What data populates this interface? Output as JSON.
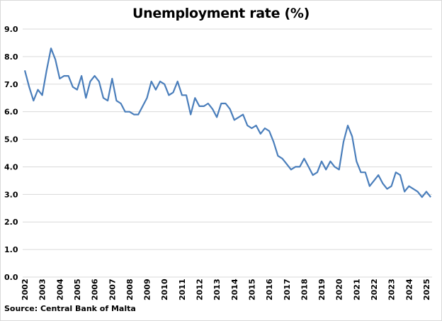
{
  "chart_data": {
    "type": "line",
    "title": "Unemployment rate (%)",
    "xlabel": "",
    "ylabel": "",
    "ylim": [
      0,
      9
    ],
    "yticks": [
      "0.0",
      "1.0",
      "2.0",
      "3.0",
      "4.0",
      "5.0",
      "6.0",
      "7.0",
      "8.0",
      "9.0"
    ],
    "xtick_labels": [
      "2002",
      "2003",
      "2004",
      "2005",
      "2006",
      "2007",
      "2008",
      "2009",
      "2010",
      "2011",
      "2012",
      "2013",
      "2014",
      "2015",
      "2016",
      "2017",
      "2018",
      "2019",
      "2020",
      "2021",
      "2022",
      "2023",
      "2024",
      "2025"
    ],
    "grid": "horizontal",
    "legend": "none",
    "frequency": "quarterly",
    "series": [
      {
        "name": "Unemployment rate",
        "color": "#4a7ebb",
        "start": "2002Q1",
        "values": [
          7.5,
          6.9,
          6.4,
          6.8,
          6.6,
          7.5,
          8.3,
          7.9,
          7.2,
          7.3,
          7.3,
          6.9,
          6.8,
          7.3,
          6.5,
          7.1,
          7.3,
          7.1,
          6.5,
          6.4,
          7.2,
          6.4,
          6.3,
          6.0,
          6.0,
          5.9,
          5.9,
          6.2,
          6.5,
          7.1,
          6.8,
          7.1,
          7.0,
          6.6,
          6.7,
          7.1,
          6.6,
          6.6,
          5.9,
          6.5,
          6.2,
          6.2,
          6.3,
          6.1,
          5.8,
          6.3,
          6.3,
          6.1,
          5.7,
          5.8,
          5.9,
          5.5,
          5.4,
          5.5,
          5.2,
          5.4,
          5.3,
          4.9,
          4.4,
          4.3,
          4.1,
          3.9,
          4.0,
          4.0,
          4.3,
          4.0,
          3.7,
          3.8,
          4.2,
          3.9,
          4.2,
          4.0,
          3.9,
          4.9,
          5.5,
          5.1,
          4.2,
          3.8,
          3.8,
          3.3,
          3.5,
          3.7,
          3.4,
          3.2,
          3.3,
          3.8,
          3.7,
          3.1,
          3.3,
          3.2,
          3.1,
          2.9,
          3.1,
          2.9
        ]
      }
    ]
  },
  "source": "Source: Central Bank of Malta"
}
